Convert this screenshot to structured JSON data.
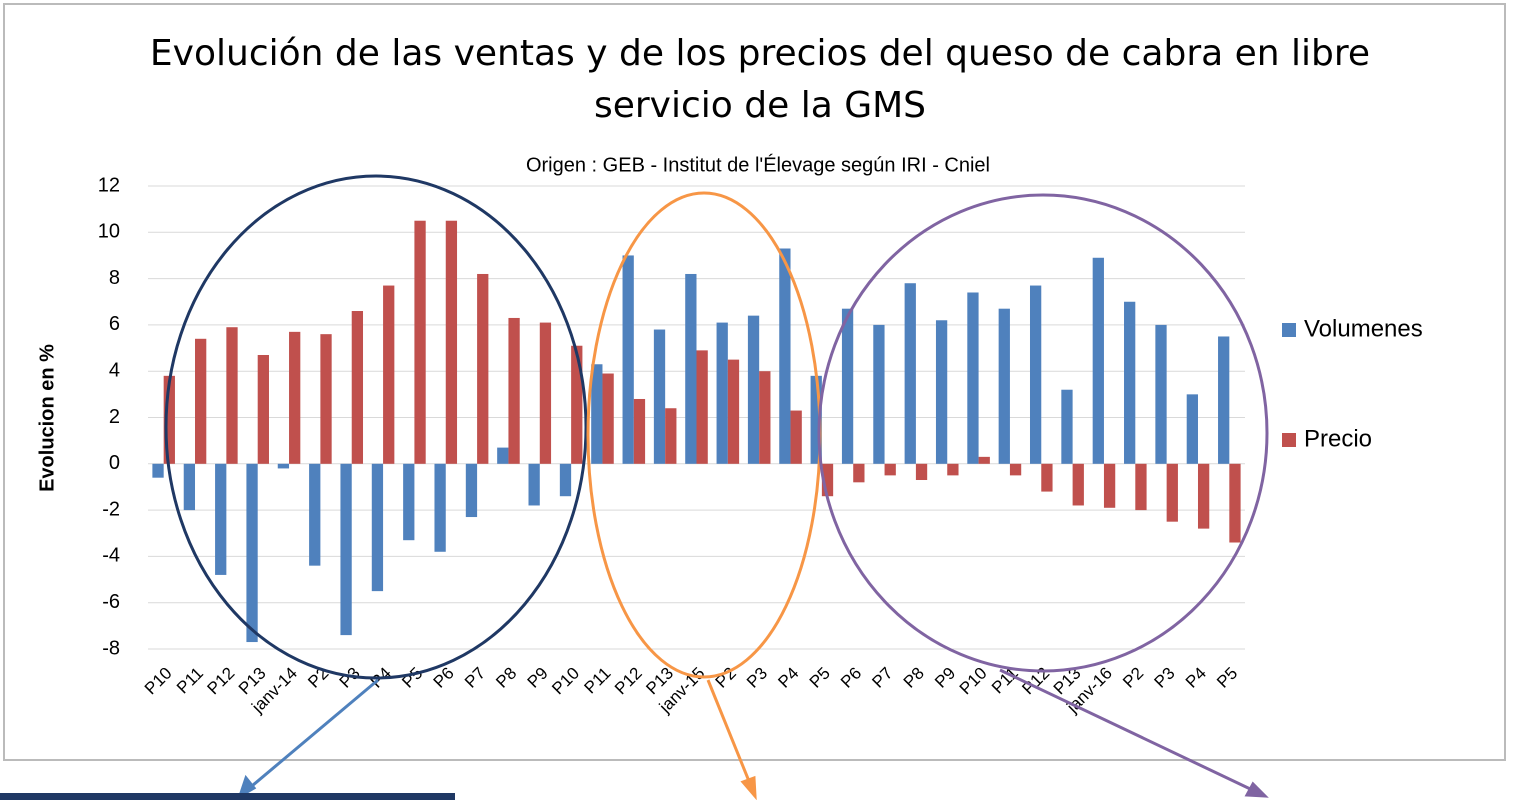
{
  "chart_data": {
    "type": "bar",
    "title": "Evolución de las ventas y de los precios del queso de cabra en libre servicio de la GMS",
    "subtitle": "Origen : GEB - Institut de l'Élevage según IRI - Cniel",
    "y_label": "Evolucion en %",
    "categories": [
      "P10",
      "P11",
      "P12",
      "P13",
      "janv-14",
      "P2",
      "P3",
      "P4",
      "P5",
      "P6",
      "P7",
      "P8",
      "P9",
      "P10",
      "P11",
      "P12",
      "P13",
      "janv-15",
      "P2",
      "P3",
      "P4",
      "P5",
      "P6",
      "P7",
      "P8",
      "P9",
      "P10",
      "P11",
      "P12",
      "P13",
      "janv-16",
      "P2",
      "P3",
      "P4",
      "P5"
    ],
    "series": [
      {
        "name": "Volumenes",
        "color": "#4f81bd",
        "values": [
          -0.6,
          -2.0,
          -4.8,
          -7.7,
          -0.2,
          -4.4,
          -7.4,
          -5.5,
          -3.3,
          -3.8,
          -2.3,
          0.7,
          -1.8,
          -1.4,
          4.3,
          9.0,
          5.8,
          8.2,
          6.1,
          6.4,
          9.3,
          3.8,
          6.7,
          6.0,
          7.8,
          6.2,
          7.4,
          6.7,
          7.7,
          3.2,
          8.9,
          7.0,
          6.0,
          3.0,
          5.5
        ]
      },
      {
        "name": "Precio",
        "color": "#c0504d",
        "values": [
          3.8,
          5.4,
          5.9,
          4.7,
          5.7,
          5.6,
          6.6,
          7.7,
          10.5,
          10.5,
          8.2,
          6.3,
          6.1,
          5.1,
          3.9,
          2.8,
          2.4,
          4.9,
          4.5,
          4.0,
          2.3,
          -1.4,
          -0.8,
          -0.5,
          -0.7,
          -0.5,
          0.3,
          -0.5,
          -1.2,
          -1.8,
          -1.9,
          -2.0,
          -2.5,
          -2.8,
          -3.4
        ]
      }
    ],
    "ylim": [
      -8,
      12
    ],
    "yticks": [
      -8,
      -6,
      -4,
      -2,
      0,
      2,
      4,
      6,
      8,
      10,
      12
    ],
    "grid": true,
    "legend": "right"
  }
}
